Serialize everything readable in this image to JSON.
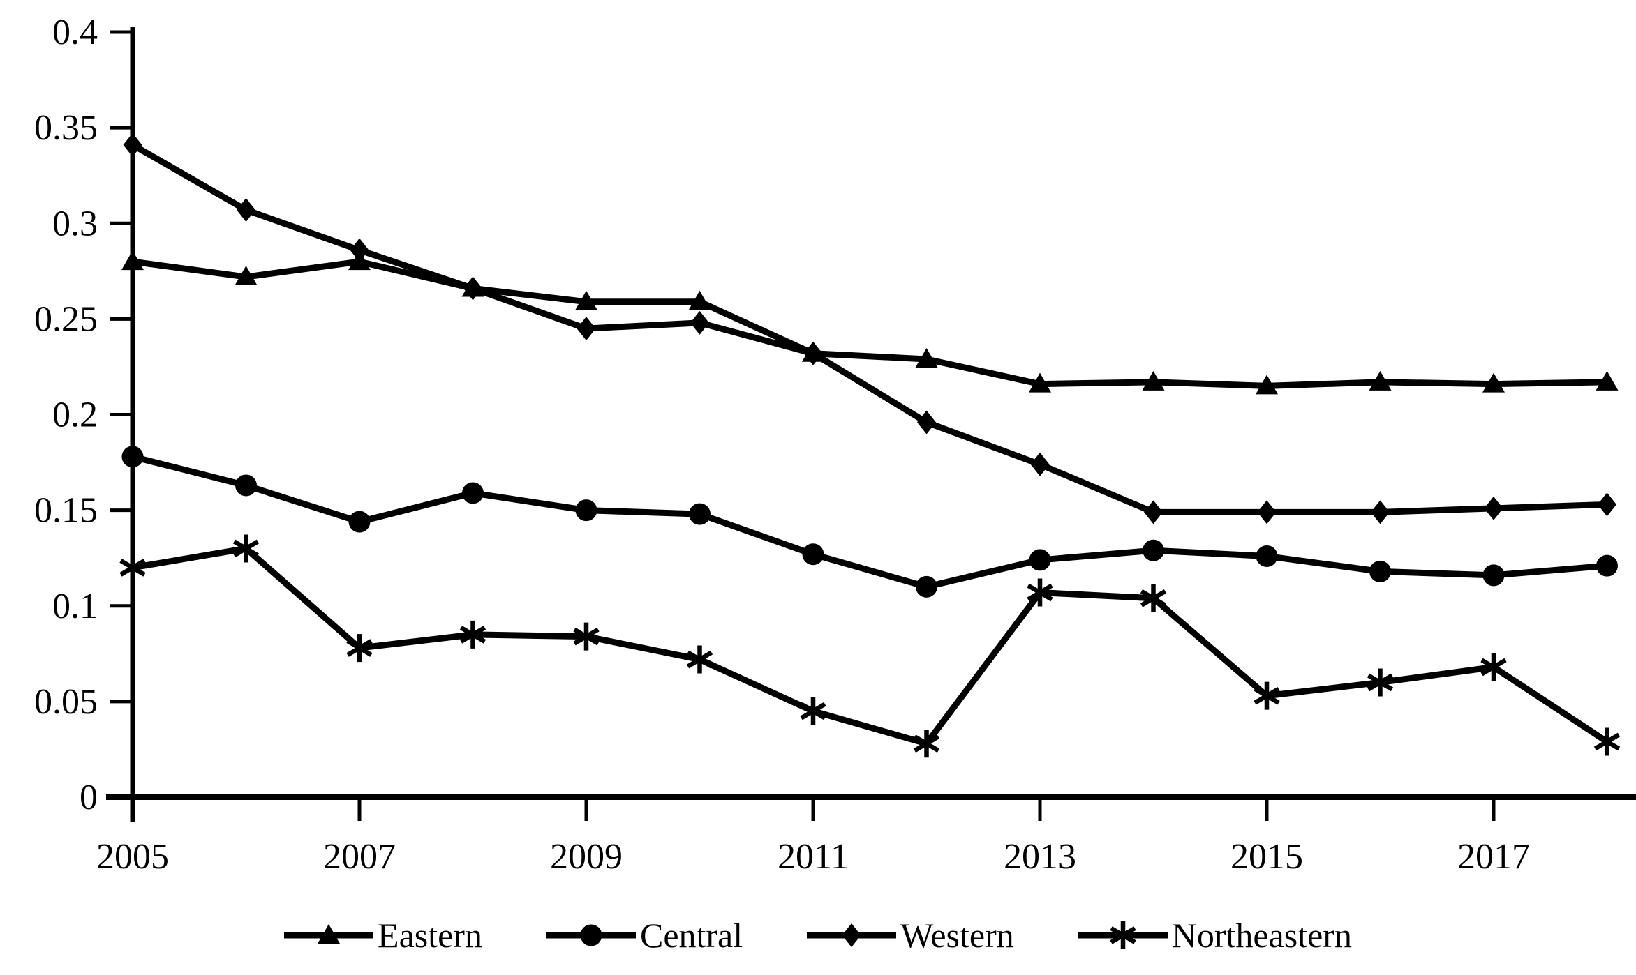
{
  "chart_data": {
    "type": "line",
    "title": "",
    "xlabel": "",
    "ylabel": "",
    "x": [
      2005,
      2006,
      2007,
      2008,
      2009,
      2010,
      2011,
      2012,
      2013,
      2014,
      2015,
      2016,
      2017,
      2018
    ],
    "series": [
      {
        "name": "Eastern",
        "marker": "triangle",
        "values": [
          0.28,
          0.272,
          0.28,
          0.266,
          0.259,
          0.259,
          0.232,
          0.229,
          0.216,
          0.217,
          0.215,
          0.217,
          0.216,
          0.217
        ]
      },
      {
        "name": "Central",
        "marker": "circle",
        "values": [
          0.178,
          0.163,
          0.144,
          0.159,
          0.15,
          0.148,
          0.127,
          0.11,
          0.124,
          0.129,
          0.126,
          0.118,
          0.116,
          0.121
        ]
      },
      {
        "name": "Western",
        "marker": "diamond",
        "values": [
          0.341,
          0.307,
          0.286,
          0.266,
          0.245,
          0.248,
          0.232,
          0.196,
          0.174,
          0.149,
          0.149,
          0.149,
          0.151,
          0.153
        ]
      },
      {
        "name": "Northeastern",
        "marker": "asterisk",
        "values": [
          0.12,
          0.13,
          0.078,
          0.085,
          0.084,
          0.072,
          0.045,
          0.028,
          0.107,
          0.104,
          0.053,
          0.06,
          0.068,
          0.029
        ]
      }
    ],
    "ylim": [
      0,
      0.4
    ],
    "y_ticks": [
      0,
      0.05,
      0.1,
      0.15,
      0.2,
      0.25,
      0.3,
      0.35,
      0.4
    ],
    "y_tick_labels": [
      "0",
      "0.05",
      "0.1",
      "0.15",
      "0.2",
      "0.25",
      "0.3",
      "0.35",
      "0.4"
    ],
    "x_ticks": [
      2005,
      2007,
      2009,
      2011,
      2013,
      2015,
      2017
    ],
    "x_tick_labels": [
      "2005",
      "2007",
      "2009",
      "2011",
      "2013",
      "2015",
      "2017"
    ],
    "grid": false,
    "legend_position": "bottom",
    "line_color": "#000000",
    "background_color": "#ffffff"
  }
}
